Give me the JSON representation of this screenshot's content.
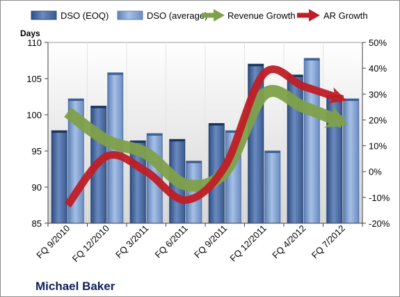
{
  "chart_data": {
    "type": "bar",
    "categories": [
      "FQ 9/2010",
      "FQ 12/2010",
      "FQ 3/2011",
      "FQ 6/2011",
      "FQ 9/2011",
      "FQ 12/2011",
      "FQ 4/2012",
      "FQ 7/2012"
    ],
    "ylabel": "Days",
    "ylim": [
      85,
      110
    ],
    "y_ticks": [
      "85",
      "90",
      "95",
      "100",
      "105",
      "110"
    ],
    "y2lim": [
      -20,
      50
    ],
    "y2_ticks": [
      "-20%",
      "-10%",
      "0%",
      "10%",
      "20%",
      "30%",
      "40%",
      "50%"
    ],
    "series": [
      {
        "name": "DSO (EOQ)",
        "type": "bar",
        "axis": "left",
        "color": "#4f6fa3",
        "values": [
          97.8,
          101.2,
          96.4,
          96.6,
          98.8,
          107.0,
          105.5,
          102.7
        ]
      },
      {
        "name": "DSO (average)",
        "type": "bar",
        "axis": "left",
        "color": "#7f9ed0",
        "values": [
          102.2,
          105.8,
          97.4,
          93.6,
          97.8,
          95.0,
          107.8,
          102.2
        ]
      },
      {
        "name": "Revenue Growth",
        "type": "line",
        "axis": "right",
        "color": "#7fa14a",
        "values": [
          23,
          12,
          7,
          -5,
          0,
          30,
          25,
          19
        ]
      },
      {
        "name": "AR Growth",
        "type": "line",
        "axis": "right",
        "color": "#c01e26",
        "values": [
          -13,
          6,
          0,
          -11,
          2,
          38,
          33,
          28
        ]
      }
    ],
    "legend_position": "top",
    "grid": false
  },
  "caption": "Michael Baker"
}
